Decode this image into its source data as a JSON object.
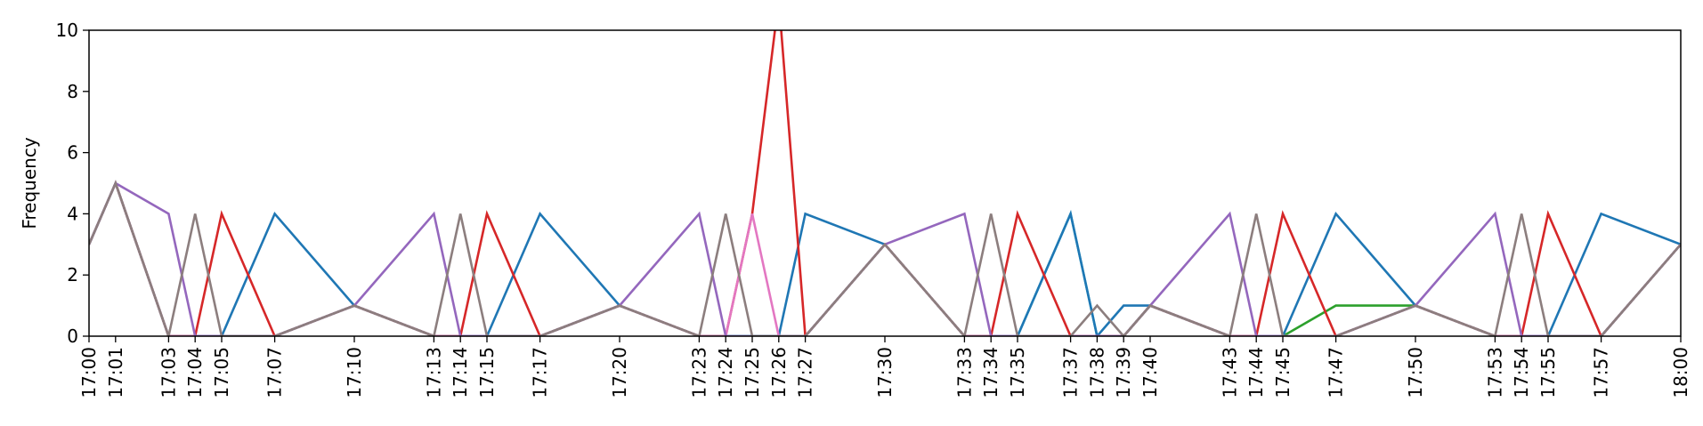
{
  "chart_data": {
    "type": "line",
    "title": "",
    "xlabel": "",
    "ylabel": "Frequency",
    "ylim": [
      0,
      10
    ],
    "yticks": [
      "0",
      "2",
      "4",
      "6",
      "8",
      "10"
    ],
    "grid": false,
    "legend": "none",
    "x": [
      "17:00",
      "17:01",
      "17:03",
      "17:04",
      "17:05",
      "17:07",
      "17:10",
      "17:13",
      "17:14",
      "17:15",
      "17:17",
      "17:20",
      "17:23",
      "17:24",
      "17:25",
      "17:26",
      "17:27",
      "17:30",
      "17:33",
      "17:34",
      "17:35",
      "17:37",
      "17:38",
      "17:39",
      "17:40",
      "17:43",
      "17:44",
      "17:45",
      "17:47",
      "17:50",
      "17:53",
      "17:54",
      "17:55",
      "17:57",
      "18:00"
    ],
    "series": [
      {
        "color": "#2ca02c",
        "values": [
          3,
          5,
          0,
          0,
          0,
          0,
          1,
          0,
          0,
          0,
          0,
          1,
          0,
          0,
          0,
          0,
          0,
          3,
          0,
          0,
          0,
          0,
          0,
          0,
          1,
          0,
          0,
          0,
          1,
          1,
          0,
          0,
          0,
          0,
          3
        ]
      },
      {
        "color": "#17becf",
        "values": [
          3,
          5,
          0,
          0,
          0,
          0,
          1,
          0,
          0,
          0,
          0,
          1,
          0,
          0,
          0,
          0,
          0,
          3,
          0,
          0,
          0,
          4,
          0,
          0,
          1,
          0,
          0,
          0,
          0,
          1,
          0,
          0,
          0,
          0,
          3
        ]
      },
      {
        "color": "#1f77b4",
        "values": [
          3,
          5,
          0,
          0,
          0,
          4,
          1,
          0,
          0,
          0,
          4,
          1,
          0,
          0,
          0,
          0,
          4,
          3,
          0,
          0,
          0,
          4,
          0,
          1,
          1,
          0,
          0,
          0,
          4,
          1,
          0,
          0,
          0,
          4,
          3
        ]
      },
      {
        "color": "#d62728",
        "values": [
          3,
          5,
          0,
          0,
          4,
          0,
          1,
          0,
          0,
          4,
          0,
          1,
          0,
          0,
          4,
          11,
          0,
          3,
          0,
          0,
          4,
          0,
          0,
          0,
          1,
          0,
          0,
          4,
          0,
          1,
          0,
          0,
          4,
          0,
          3
        ]
      },
      {
        "color": "#e377c2",
        "values": [
          3,
          5,
          0,
          0,
          0,
          0,
          1,
          0,
          0,
          0,
          0,
          1,
          0,
          0,
          4,
          0,
          0,
          3,
          0,
          0,
          0,
          0,
          0,
          0,
          1,
          0,
          0,
          0,
          0,
          1,
          0,
          0,
          0,
          0,
          3
        ]
      },
      {
        "color": "#9467bd",
        "values": [
          3,
          5,
          4,
          0,
          0,
          0,
          1,
          4,
          0,
          0,
          0,
          1,
          4,
          0,
          0,
          0,
          0,
          3,
          4,
          0,
          0,
          0,
          0,
          0,
          1,
          4,
          0,
          0,
          0,
          1,
          4,
          0,
          0,
          0,
          3
        ]
      },
      {
        "color": "#8c7e7e",
        "values": [
          3,
          5,
          0,
          4,
          0,
          0,
          1,
          0,
          4,
          0,
          0,
          1,
          0,
          4,
          0,
          0,
          0,
          3,
          0,
          4,
          0,
          0,
          1,
          0,
          1,
          0,
          4,
          0,
          0,
          1,
          0,
          4,
          0,
          0,
          3
        ]
      }
    ]
  }
}
